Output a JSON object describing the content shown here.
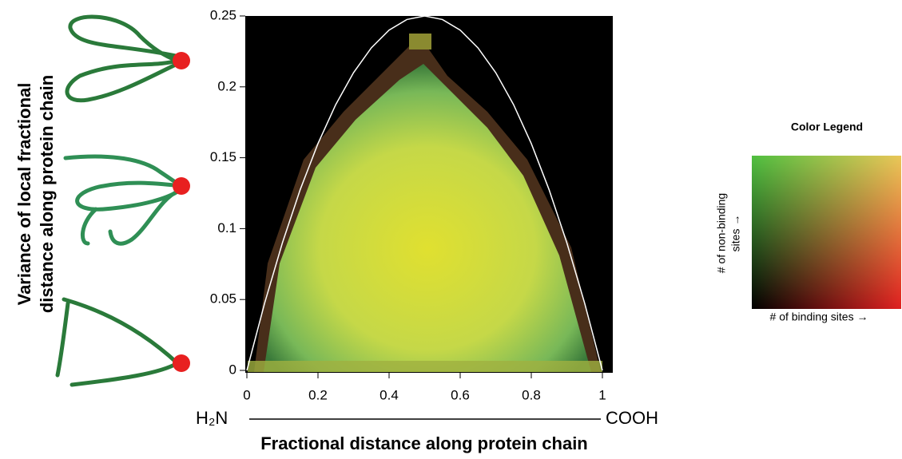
{
  "chart_data": {
    "type": "heatmap",
    "y_label": [
      "Variance of local fractional",
      "distance along protein chain"
    ],
    "x_label": "Fractional distance along protein chain",
    "x_start_label": "H₂N",
    "x_end_label": "COOH",
    "xlim": [
      0,
      1
    ],
    "ylim": [
      0,
      0.25
    ],
    "xticks": [
      0,
      0.2,
      0.4,
      0.6,
      0.8,
      1
    ],
    "yticks": [
      0,
      0.05,
      0.1,
      0.15,
      0.2,
      0.25
    ],
    "boundary": {
      "color": "#ffffff",
      "x": [
        0,
        0.05,
        0.1,
        0.15,
        0.2,
        0.25,
        0.3,
        0.35,
        0.4,
        0.45,
        0.5,
        0.55,
        0.6,
        0.65,
        0.7,
        0.75,
        0.8,
        0.85,
        0.9,
        0.95,
        1
      ],
      "values": [
        0,
        0.0475,
        0.09,
        0.1275,
        0.16,
        0.1875,
        0.21,
        0.2275,
        0.24,
        0.2475,
        0.25,
        0.2475,
        0.24,
        0.2275,
        0.21,
        0.1875,
        0.16,
        0.1275,
        0.09,
        0.0475,
        0
      ]
    },
    "legend": {
      "title": "Color Legend",
      "x_label": "# of binding sites →",
      "y_label": [
        "# of non-binding",
        "sites →"
      ]
    }
  }
}
